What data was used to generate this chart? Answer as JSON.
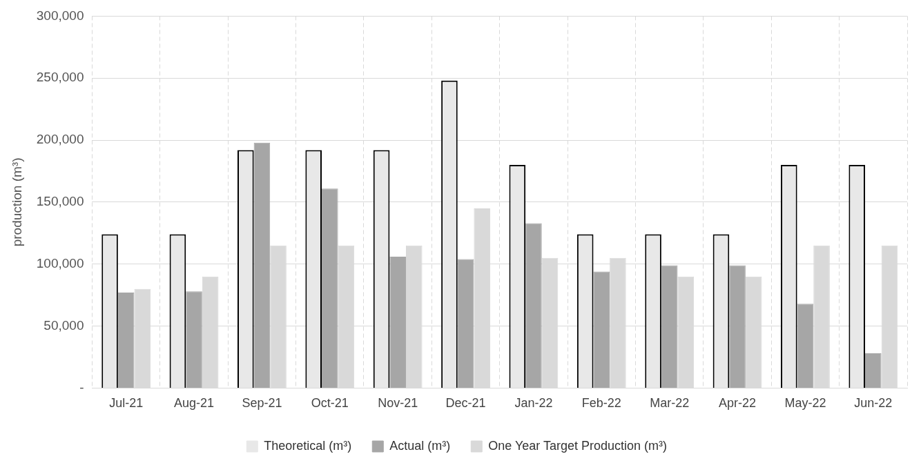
{
  "chart_data": {
    "type": "bar",
    "ylabel": "production (m³)",
    "categories": [
      "Jul-21",
      "Aug-21",
      "Sep-21",
      "Oct-21",
      "Nov-21",
      "Dec-21",
      "Jan-22",
      "Feb-22",
      "Mar-22",
      "Apr-22",
      "May-22",
      "Jun-22"
    ],
    "series": [
      {
        "name": "Theoretical (m³)",
        "color": "#e8e8e8",
        "values": [
          124000,
          124000,
          192000,
          192000,
          192000,
          248000,
          180000,
          124000,
          124000,
          124000,
          180000,
          180000
        ]
      },
      {
        "name": "Actual (m³)",
        "color": "#a6a6a6",
        "values": [
          77000,
          78000,
          198000,
          161000,
          106000,
          104000,
          133000,
          94000,
          99000,
          99000,
          68000,
          28000
        ]
      },
      {
        "name": "One Year Target Production (m³)",
        "color": "#d9d9d9",
        "values": [
          80000,
          90000,
          115000,
          115000,
          115000,
          145000,
          105000,
          105000,
          90000,
          90000,
          115000,
          115000
        ]
      }
    ],
    "ylim": [
      0,
      300000
    ],
    "yticks": [
      {
        "value": 0,
        "label": "-"
      },
      {
        "value": 50000,
        "label": "50,000"
      },
      {
        "value": 100000,
        "label": "100,000"
      },
      {
        "value": 150000,
        "label": "150,000"
      },
      {
        "value": 200000,
        "label": "200,000"
      },
      {
        "value": 250000,
        "label": "250,000"
      },
      {
        "value": 300000,
        "label": "300,000"
      }
    ],
    "grid": true,
    "legend": "bottom"
  }
}
